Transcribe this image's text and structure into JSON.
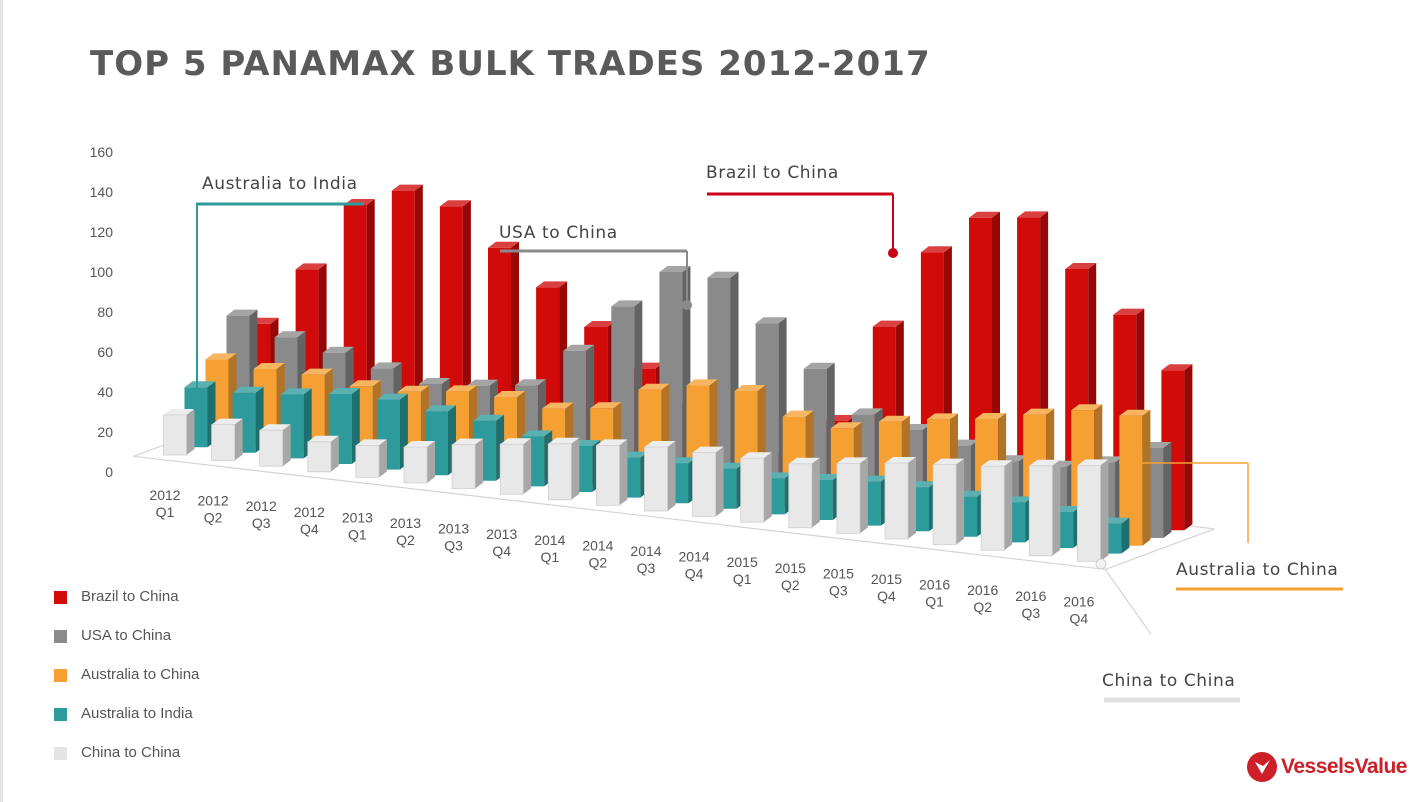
{
  "title": "TOP 5 PANAMAX BULK TRADES 2012-2017",
  "brand": {
    "name": "VesselsValue",
    "color": "#cc1f27"
  },
  "chart_data": {
    "type": "bar",
    "variant": "3d-clustered-column",
    "title": "TOP 5 PANAMAX BULK TRADES 2012-2017",
    "ylim": [
      0,
      160
    ],
    "yticks": [
      0,
      20,
      40,
      60,
      80,
      100,
      120,
      140,
      160
    ],
    "grid": false,
    "legend": "bottom-left",
    "categories": [
      [
        "2012",
        "Q1"
      ],
      [
        "2012",
        "Q2"
      ],
      [
        "2012",
        "Q3"
      ],
      [
        "2012",
        "Q4"
      ],
      [
        "2013",
        "Q1"
      ],
      [
        "2013",
        "Q2"
      ],
      [
        "2013",
        "Q3"
      ],
      [
        "2013",
        "Q4"
      ],
      [
        "2014",
        "Q1"
      ],
      [
        "2014",
        "Q2"
      ],
      [
        "2014",
        "Q3"
      ],
      [
        "2014",
        "Q4"
      ],
      [
        "2015",
        "Q1"
      ],
      [
        "2015",
        "Q2"
      ],
      [
        "2015",
        "Q3"
      ],
      [
        "2015",
        "Q4"
      ],
      [
        "2016",
        "Q1"
      ],
      [
        "2016",
        "Q2"
      ],
      [
        "2016",
        "Q3"
      ],
      [
        "2016",
        "Q4"
      ]
    ],
    "series": [
      {
        "name": "Brazil to China",
        "color": "#d10a0a",
        "values": [
          50,
          80,
          115,
          125,
          120,
          102,
          85,
          68,
          50,
          35,
          20,
          15,
          35,
          85,
          125,
          145,
          148,
          125,
          105,
          80
        ]
      },
      {
        "name": "USA to China",
        "color": "#8a8a8a",
        "values": [
          58,
          50,
          45,
          40,
          35,
          37,
          40,
          60,
          85,
          105,
          105,
          85,
          65,
          45,
          40,
          35,
          30,
          30,
          35,
          45
        ]
      },
      {
        "name": "Australia to China",
        "color": "#f6a033",
        "values": [
          40,
          38,
          38,
          35,
          35,
          38,
          38,
          35,
          38,
          50,
          55,
          55,
          45,
          42,
          48,
          52,
          55,
          60,
          65,
          65
        ]
      },
      {
        "name": "Australia to India",
        "color": "#2d9a9b",
        "values": [
          30,
          30,
          32,
          35,
          35,
          32,
          30,
          25,
          23,
          20,
          20,
          20,
          18,
          20,
          22,
          22,
          20,
          20,
          18,
          15
        ]
      },
      {
        "name": "China to China",
        "color": "#e8e8e8",
        "values": [
          20,
          18,
          18,
          15,
          16,
          18,
          22,
          25,
          28,
          30,
          32,
          32,
          32,
          32,
          35,
          38,
          40,
          42,
          45,
          48
        ]
      }
    ],
    "annotations": [
      {
        "text": "Australia to India",
        "series": "Australia to India"
      },
      {
        "text": "USA to China",
        "series": "USA to China"
      },
      {
        "text": "Brazil to China",
        "series": "Brazil to China"
      },
      {
        "text": "Australia to China",
        "series": "Australia to China"
      },
      {
        "text": "China to China",
        "series": "China to China"
      }
    ]
  }
}
